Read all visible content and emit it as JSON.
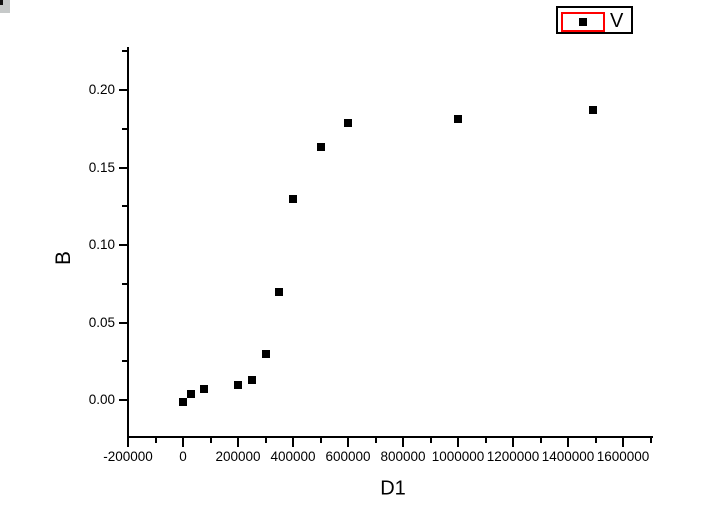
{
  "window_fragment": {
    "note": "partial gray widget visible at top-left corner of screenshot"
  },
  "colors": {
    "marker": "#000000",
    "axis": "#000000",
    "legend_border": "#000000",
    "legend_highlight": "#ff0000",
    "background": "#ffffff"
  },
  "chart_data": {
    "type": "scatter",
    "title": "",
    "xlabel": "D1",
    "ylabel": "B",
    "xlim": [
      -204000,
      1709000
    ],
    "ylim": [
      -0.023,
      0.228
    ],
    "grid": false,
    "legend_position": "top-right",
    "x_ticks": {
      "major_values": [
        -200000,
        0,
        200000,
        400000,
        600000,
        800000,
        1000000,
        1200000,
        1400000,
        1600000
      ],
      "major_labels": [
        "-200000",
        "0",
        "200000",
        "400000",
        "600000",
        "800000",
        "1000000",
        "1200000",
        "1400000",
        "1600000"
      ],
      "minor_values": [
        -100000,
        100000,
        300000,
        500000,
        700000,
        900000,
        1100000,
        1300000,
        1500000,
        1700000
      ]
    },
    "y_ticks": {
      "major_values": [
        0.0,
        0.05,
        0.1,
        0.15,
        0.2
      ],
      "major_labels": [
        "0.00",
        "0.05",
        "0.10",
        "0.15",
        "0.20"
      ],
      "minor_values": [
        0.025,
        0.075,
        0.125,
        0.175,
        0.225
      ]
    },
    "series": [
      {
        "name": "V",
        "marker": "filled-square",
        "color": "#000000",
        "points": [
          [
            0,
            -0.001
          ],
          [
            30000,
            0.004
          ],
          [
            75000,
            0.007
          ],
          [
            200000,
            0.01
          ],
          [
            250000,
            0.013
          ],
          [
            300000,
            0.03
          ],
          [
            350000,
            0.07
          ],
          [
            400000,
            0.13
          ],
          [
            500000,
            0.163
          ],
          [
            600000,
            0.179
          ],
          [
            1000000,
            0.181
          ],
          [
            1490000,
            0.187
          ]
        ]
      }
    ]
  }
}
